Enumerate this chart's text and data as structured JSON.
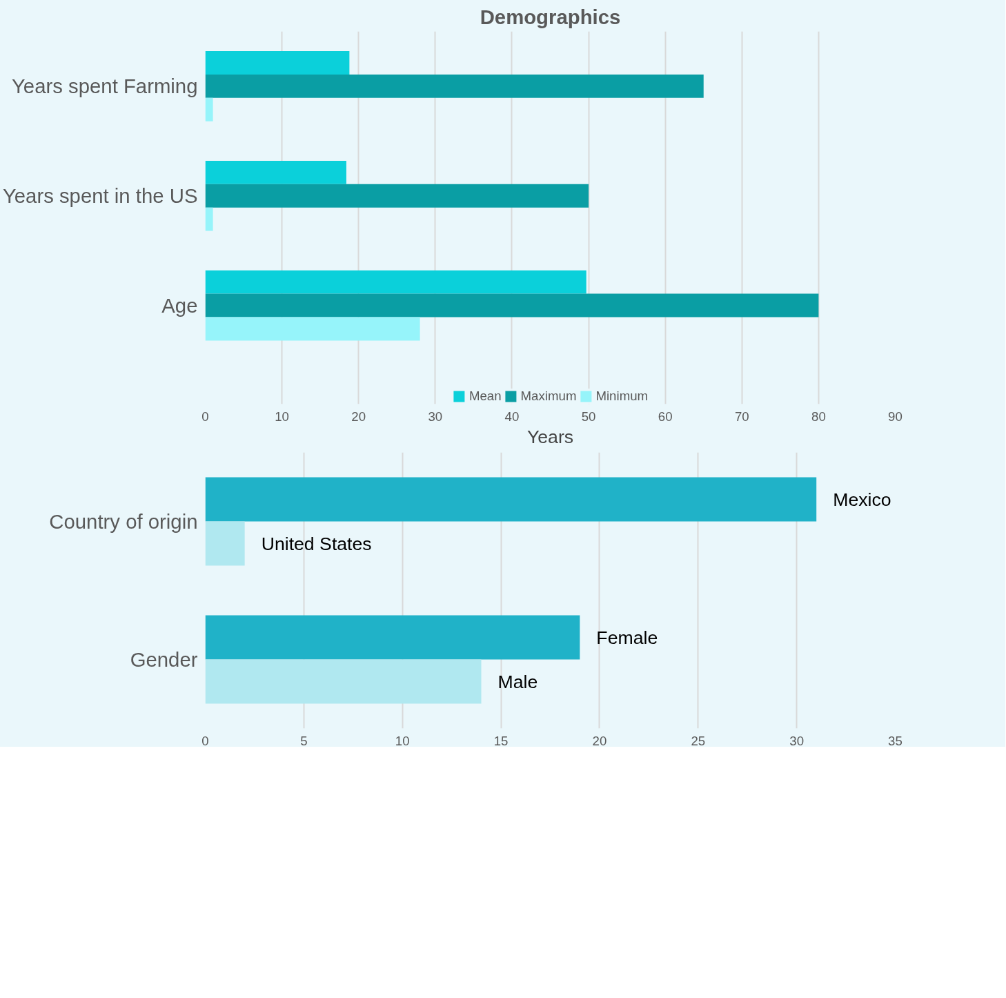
{
  "chart_data": [
    {
      "type": "bar",
      "orientation": "horizontal",
      "title": "Demographics",
      "xlabel": "Years",
      "categories": [
        "Years spent Farming",
        "Years spent in the US",
        "Age"
      ],
      "series": [
        {
          "name": "Mean",
          "color": "#0bd0da",
          "values": [
            18.8,
            18.4,
            49.7
          ]
        },
        {
          "name": "Maximum",
          "color": "#0a9ea4",
          "values": [
            65,
            50,
            80
          ]
        },
        {
          "name": "Minimum",
          "color": "#96f4fa",
          "values": [
            1,
            1,
            28
          ]
        }
      ],
      "xlim": [
        0,
        90
      ],
      "xticks": [
        0,
        10,
        20,
        30,
        40,
        50,
        60,
        70,
        80,
        90
      ],
      "grid": "x",
      "legend": "bottom"
    },
    {
      "type": "bar",
      "orientation": "horizontal",
      "categories": [
        "Country of origin",
        "Gender"
      ],
      "series": [
        {
          "color": "#20b2c8",
          "values": [
            31,
            19
          ],
          "value_labels": [
            "Mexico",
            "Female"
          ]
        },
        {
          "color": "#b0e8f0",
          "values": [
            2,
            14
          ],
          "value_labels": [
            "United States",
            "Male"
          ]
        }
      ],
      "xlim": [
        0,
        35
      ],
      "xticks": [
        0,
        5,
        10,
        15,
        20,
        25,
        30,
        35
      ],
      "grid": "x"
    }
  ]
}
